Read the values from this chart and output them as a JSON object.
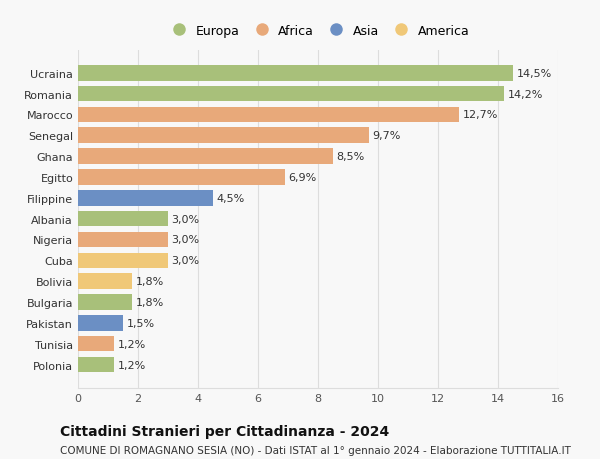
{
  "categories": [
    "Polonia",
    "Tunisia",
    "Pakistan",
    "Bulgaria",
    "Bolivia",
    "Cuba",
    "Nigeria",
    "Albania",
    "Filippine",
    "Egitto",
    "Ghana",
    "Senegal",
    "Marocco",
    "Romania",
    "Ucraina"
  ],
  "values": [
    1.2,
    1.2,
    1.5,
    1.8,
    1.8,
    3.0,
    3.0,
    3.0,
    4.5,
    6.9,
    8.5,
    9.7,
    12.7,
    14.2,
    14.5
  ],
  "labels": [
    "1,2%",
    "1,2%",
    "1,5%",
    "1,8%",
    "1,8%",
    "3,0%",
    "3,0%",
    "3,0%",
    "4,5%",
    "6,9%",
    "8,5%",
    "9,7%",
    "12,7%",
    "14,2%",
    "14,5%"
  ],
  "colors": [
    "#a8c07a",
    "#e8a97a",
    "#6b8fc4",
    "#a8c07a",
    "#f0c878",
    "#f0c878",
    "#e8a97a",
    "#a8c07a",
    "#6b8fc4",
    "#e8a97a",
    "#e8a97a",
    "#e8a97a",
    "#e8a97a",
    "#a8c07a",
    "#a8c07a"
  ],
  "legend_labels": [
    "Europa",
    "Africa",
    "Asia",
    "America"
  ],
  "legend_colors": [
    "#a8c07a",
    "#e8a97a",
    "#6b8fc4",
    "#f0c878"
  ],
  "xlim": [
    0,
    16
  ],
  "xticks": [
    0,
    2,
    4,
    6,
    8,
    10,
    12,
    14,
    16
  ],
  "title": "Cittadini Stranieri per Cittadinanza - 2024",
  "subtitle": "COMUNE DI ROMAGNANO SESIA (NO) - Dati ISTAT al 1° gennaio 2024 - Elaborazione TUTTITALIA.IT",
  "bg_color": "#f8f8f8",
  "grid_color": "#dddddd",
  "bar_height": 0.75,
  "label_fontsize": 8,
  "title_fontsize": 10,
  "subtitle_fontsize": 7.5,
  "ytick_fontsize": 8,
  "xtick_fontsize": 8
}
